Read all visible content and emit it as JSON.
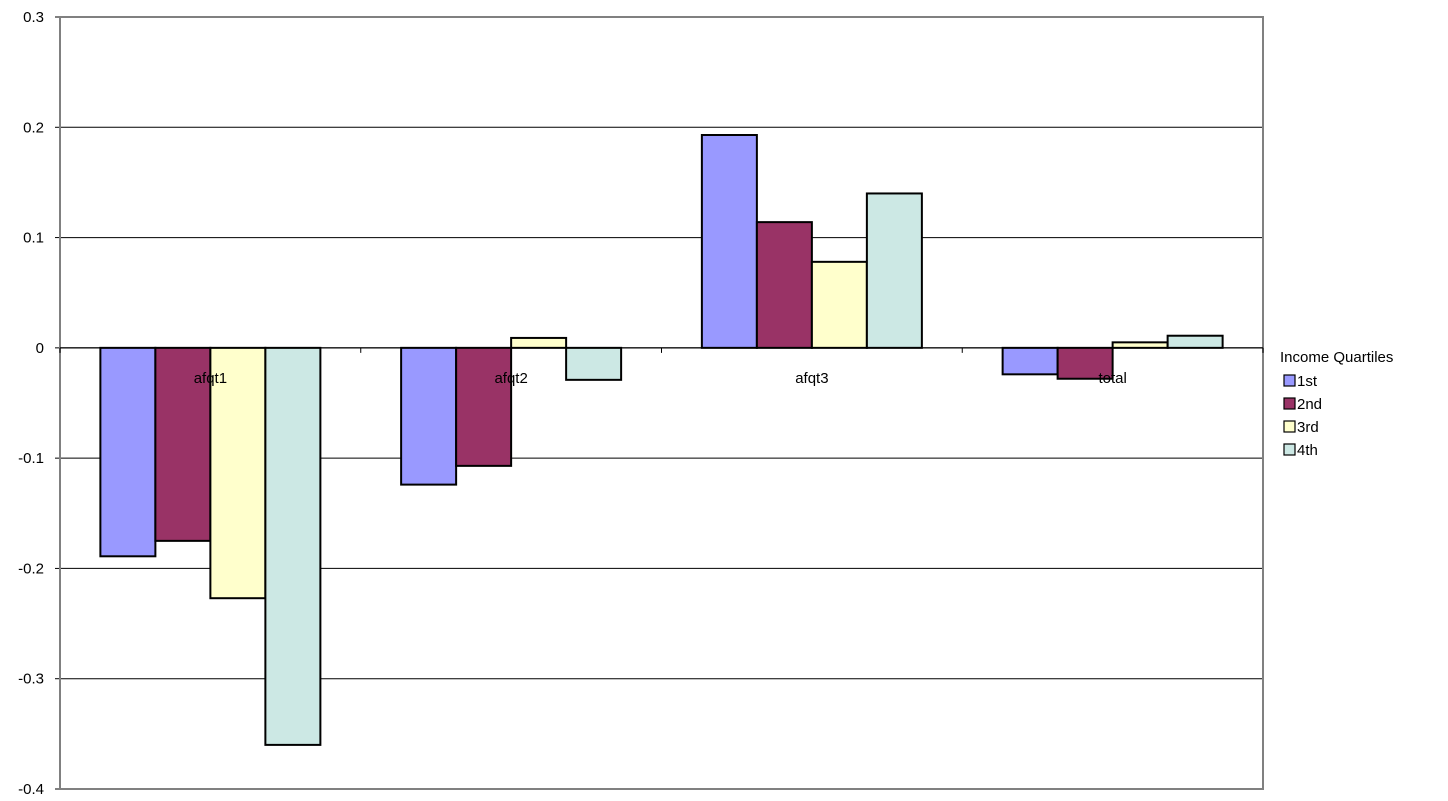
{
  "chart_data": {
    "type": "bar",
    "categories": [
      "afqt1",
      "afqt2",
      "afqt3",
      "total"
    ],
    "series": [
      {
        "name": "1st",
        "color": "#9999FF",
        "values": [
          -0.189,
          -0.124,
          0.193,
          -0.024
        ]
      },
      {
        "name": "2nd",
        "color": "#993366",
        "values": [
          -0.175,
          -0.107,
          0.114,
          -0.028
        ]
      },
      {
        "name": "3rd",
        "color": "#FFFFCC",
        "values": [
          -0.227,
          0.009,
          0.078,
          0.005
        ]
      },
      {
        "name": "4th",
        "color": "#CCE8E4",
        "values": [
          -0.36,
          -0.029,
          0.14,
          0.011
        ]
      }
    ],
    "ylim": [
      -0.4,
      0.3
    ],
    "yticks": [
      0.3,
      0.2,
      0.1,
      0,
      -0.1,
      -0.2,
      -0.3,
      -0.4
    ],
    "ytick_labels": [
      "0.3",
      "0.2",
      "0.1",
      "0",
      "-0.1",
      "-0.2",
      "-0.3",
      "-0.4"
    ],
    "grid": true,
    "legend": {
      "title": "Income Quartiles",
      "position": "right"
    },
    "title": "",
    "xlabel": "",
    "ylabel": ""
  }
}
